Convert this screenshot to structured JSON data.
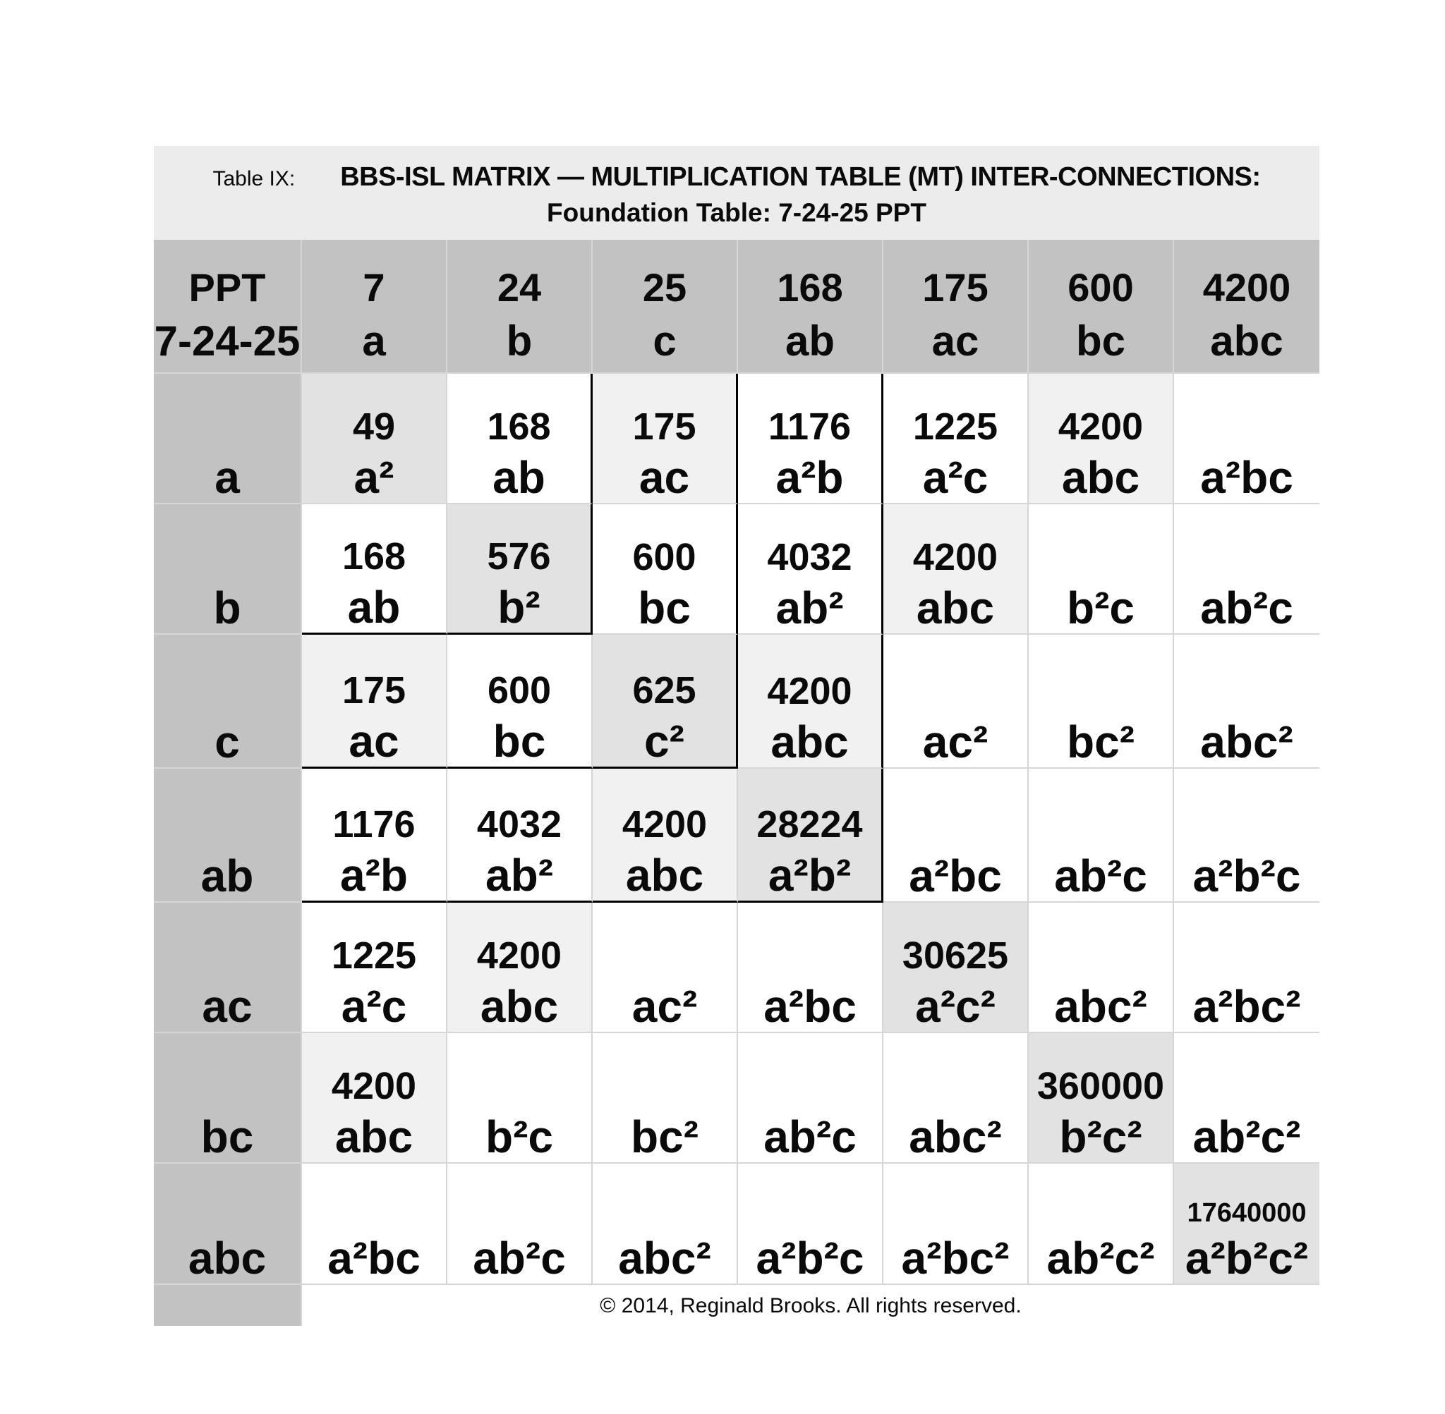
{
  "table": {
    "title": {
      "label": "Table IX:",
      "heading_line1": "BBS-ISL MATRIX — MULTIPLICATION TABLE (MT) INTER-CONNECTIONS:",
      "heading_line2": "Foundation Table: 7-24-25 PPT"
    },
    "colors": {
      "header_gray": "#c2c2c2",
      "diagonal_cell": "#e2e2e2",
      "highlight_cell": "#f1f1f1",
      "title_band": "#ececec",
      "grid_line": "#d6d6d6",
      "block_outline": "#000000"
    },
    "header": {
      "corner": {
        "value": "PPT",
        "term": "7-24-25"
      },
      "columns": [
        {
          "value": "7",
          "term": "a"
        },
        {
          "value": "24",
          "term": "b"
        },
        {
          "value": "25",
          "term": "c"
        },
        {
          "value": "168",
          "term": "ab"
        },
        {
          "value": "175",
          "term": "ac"
        },
        {
          "value": "600",
          "term": "bc"
        },
        {
          "value": "4200",
          "term": "abc"
        }
      ]
    },
    "rows": [
      {
        "label": "a",
        "cells": [
          {
            "value": "49",
            "term": "a²"
          },
          {
            "value": "168",
            "term": "ab"
          },
          {
            "value": "175",
            "term": "ac"
          },
          {
            "value": "1176",
            "term": "a²b"
          },
          {
            "value": "1225",
            "term": "a²c"
          },
          {
            "value": "4200",
            "term": "abc"
          },
          {
            "value": "",
            "term": "a²bc"
          }
        ]
      },
      {
        "label": "b",
        "cells": [
          {
            "value": "168",
            "term": "ab"
          },
          {
            "value": "576",
            "term": "b²"
          },
          {
            "value": "600",
            "term": "bc"
          },
          {
            "value": "4032",
            "term": "ab²"
          },
          {
            "value": "4200",
            "term": "abc"
          },
          {
            "value": "",
            "term": "b²c"
          },
          {
            "value": "",
            "term": "ab²c"
          }
        ]
      },
      {
        "label": "c",
        "cells": [
          {
            "value": "175",
            "term": "ac"
          },
          {
            "value": "600",
            "term": "bc"
          },
          {
            "value": "625",
            "term": "c²"
          },
          {
            "value": "4200",
            "term": "abc"
          },
          {
            "value": "",
            "term": "ac²"
          },
          {
            "value": "",
            "term": "bc²"
          },
          {
            "value": "",
            "term": "abc²"
          }
        ]
      },
      {
        "label": "ab",
        "cells": [
          {
            "value": "1176",
            "term": "a²b"
          },
          {
            "value": "4032",
            "term": "ab²"
          },
          {
            "value": "4200",
            "term": "abc"
          },
          {
            "value": "28224",
            "term": "a²b²"
          },
          {
            "value": "",
            "term": "a²bc"
          },
          {
            "value": "",
            "term": "ab²c"
          },
          {
            "value": "",
            "term": "a²b²c"
          }
        ]
      },
      {
        "label": "ac",
        "cells": [
          {
            "value": "1225",
            "term": "a²c"
          },
          {
            "value": "4200",
            "term": "abc"
          },
          {
            "value": "",
            "term": "ac²"
          },
          {
            "value": "",
            "term": "a²bc"
          },
          {
            "value": "30625",
            "term": "a²c²"
          },
          {
            "value": "",
            "term": "abc²"
          },
          {
            "value": "",
            "term": "a²bc²"
          }
        ]
      },
      {
        "label": "bc",
        "cells": [
          {
            "value": "4200",
            "term": "abc"
          },
          {
            "value": "",
            "term": "b²c"
          },
          {
            "value": "",
            "term": "bc²"
          },
          {
            "value": "",
            "term": "ab²c"
          },
          {
            "value": "",
            "term": "abc²"
          },
          {
            "value": "360000",
            "term": "b²c²"
          },
          {
            "value": "",
            "term": "ab²c²"
          }
        ]
      },
      {
        "label": "abc",
        "cells": [
          {
            "value": "",
            "term": "a²bc"
          },
          {
            "value": "",
            "term": "ab²c"
          },
          {
            "value": "",
            "term": "abc²"
          },
          {
            "value": "",
            "term": "a²b²c"
          },
          {
            "value": "",
            "term": "a²bc²"
          },
          {
            "value": "",
            "term": "ab²c²"
          },
          {
            "value": "17640000",
            "term": "a²b²c²"
          }
        ]
      }
    ],
    "footer": {
      "copyright": "© 2014, Reginald Brooks. All rights reserved."
    }
  }
}
